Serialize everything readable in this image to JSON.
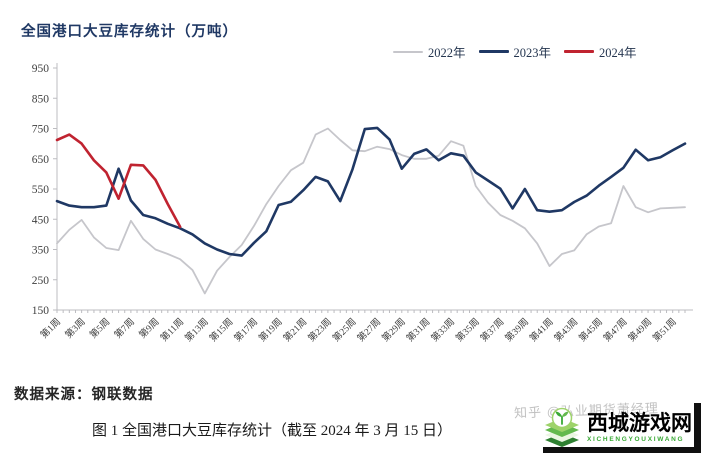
{
  "title": "全国港口大豆库存统计（万吨）",
  "legend": [
    {
      "label": "2022年",
      "color": "#c6c6cb",
      "thickness": 2
    },
    {
      "label": "2023年",
      "color": "#1f3864",
      "thickness": 3
    },
    {
      "label": "2024年",
      "color": "#c02330",
      "thickness": 3
    }
  ],
  "chart_data": {
    "type": "line",
    "title": "全国港口大豆库存统计（万吨）",
    "xlabel": "",
    "ylabel": "",
    "ylim": [
      150,
      950
    ],
    "y_ticks": [
      150,
      250,
      350,
      450,
      550,
      650,
      750,
      850,
      950
    ],
    "x_weeks": 52,
    "x_tick_labels": [
      "第1周",
      "第3周",
      "第5周",
      "第7周",
      "第9周",
      "第11周",
      "第13周",
      "第15周",
      "第17周",
      "第19周",
      "第21周",
      "第23周",
      "第25周",
      "第27周",
      "第29周",
      "第31周",
      "第33周",
      "第35周",
      "第37周",
      "第39周",
      "第41周",
      "第43周",
      "第45周",
      "第47周",
      "第49周",
      "第51周"
    ],
    "grid": false,
    "legend_position": "top-right",
    "series": [
      {
        "name": "2022年",
        "color": "#c6c6cb",
        "width": 1.8,
        "values": [
          370,
          415,
          448,
          390,
          355,
          348,
          445,
          385,
          350,
          335,
          318,
          282,
          205,
          280,
          325,
          365,
          428,
          500,
          560,
          612,
          637,
          730,
          750,
          712,
          678,
          675,
          690,
          682,
          662,
          650,
          650,
          660,
          708,
          693,
          560,
          505,
          464,
          445,
          420,
          370,
          295,
          335,
          347,
          400,
          426,
          437,
          560,
          490,
          473,
          486,
          488,
          490
        ]
      },
      {
        "name": "2023年",
        "color": "#1f3864",
        "width": 2.6,
        "values": [
          510,
          495,
          490,
          490,
          495,
          617,
          512,
          464,
          453,
          435,
          420,
          400,
          370,
          350,
          335,
          330,
          372,
          410,
          497,
          508,
          546,
          590,
          575,
          510,
          615,
          748,
          752,
          714,
          617,
          666,
          681,
          645,
          668,
          660,
          605,
          578,
          551,
          486,
          550,
          480,
          475,
          480,
          507,
          528,
          561,
          590,
          620,
          680,
          645,
          655,
          678,
          700
        ]
      },
      {
        "name": "2024年",
        "color": "#c02330",
        "width": 2.6,
        "values": [
          712,
          730,
          700,
          645,
          605,
          518,
          630,
          628,
          580,
          500,
          425
        ]
      }
    ]
  },
  "source_note": "数据来源：钢联数据",
  "caption": "图 1  全国港口大豆库存统计（截至 2024 年 3 月 15 日）",
  "watermark": "知乎 @弘业期货萧经理",
  "logo": {
    "name": "西城游戏网",
    "subtext": "XICHENGYOUXIWANG",
    "accent": "#39a935"
  }
}
